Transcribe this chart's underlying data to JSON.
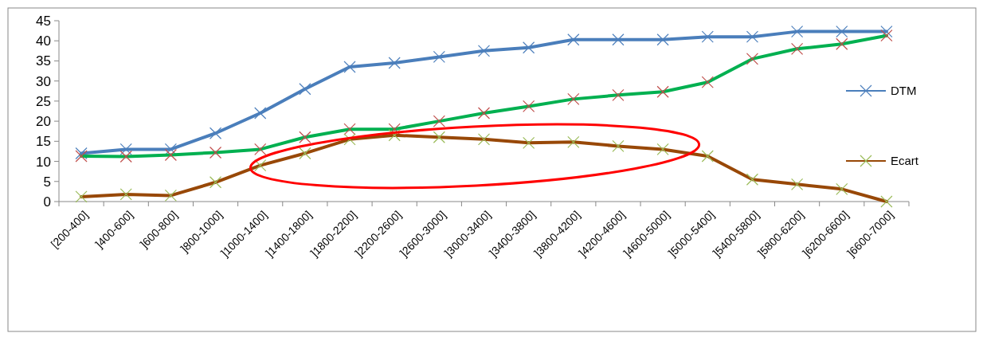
{
  "chart_data": {
    "type": "line",
    "categories": [
      "[200-400]",
      "]400-600]",
      "]600-800]",
      "]800-1000]",
      "]1000-1400]",
      "]1400-1800]",
      "]1800-2200]",
      "]2200-2600]",
      "]2600-3000]",
      "]3000-3400]",
      "]3400-3800]",
      "]3800-4200]",
      "]4200-4600]",
      "]4600-5000]",
      "]5000-5400]",
      "]5400-5800]",
      "]5800-6200]",
      "]6200-6600]",
      "]6600-7000]"
    ],
    "series": [
      {
        "name": "DTM",
        "color": "#4a7ebb",
        "values": [
          12,
          13,
          13,
          17,
          22,
          28,
          33.5,
          34.5,
          36,
          37.5,
          38.3,
          40.3,
          40.3,
          40.3,
          41,
          41,
          42.3,
          42.3,
          42.3
        ]
      },
      {
        "color": "#00b050",
        "values": [
          11.3,
          11.2,
          11.6,
          12.2,
          13,
          16,
          18,
          18,
          20,
          22,
          23.7,
          25.5,
          26.5,
          27.3,
          29.7,
          35.5,
          38,
          39.2,
          41.3
        ]
      },
      {
        "name": "Ecart",
        "color": "#984807",
        "values": [
          1.2,
          1.8,
          1.5,
          4.8,
          9,
          12,
          15.5,
          16.5,
          16,
          15.5,
          14.6,
          14.8,
          13.8,
          13,
          11.3,
          5.5,
          4.3,
          3.1,
          0
        ]
      }
    ],
    "ylim": [
      0,
      45
    ],
    "yticks": [
      0,
      5,
      10,
      15,
      20,
      25,
      30,
      35,
      40,
      45
    ],
    "grid": false,
    "legend": "right",
    "marker": "cross",
    "line_style": "solid"
  }
}
